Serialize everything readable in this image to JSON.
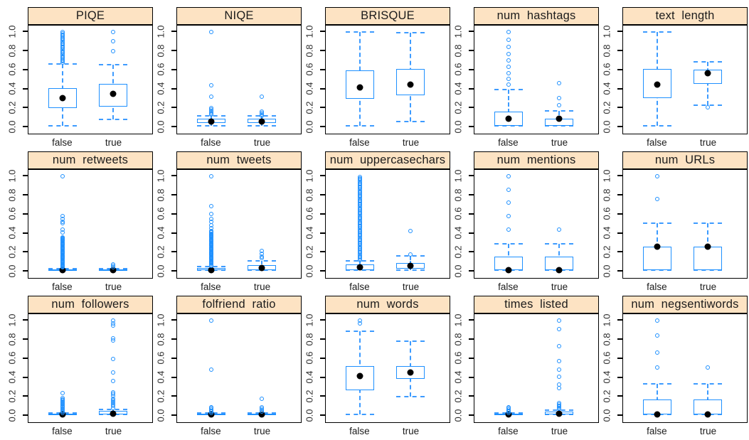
{
  "figure_title": "",
  "colors": {
    "strip_bg": "#fde3c3",
    "strip_border": "#000000",
    "panel_border": "#000000",
    "box_blue": "#1e90ff",
    "whisker_blue": "#3d9bff",
    "mean_dot": "#000000",
    "axis_text": "#303030",
    "category_text": "#1c1c1c"
  },
  "chart_data": {
    "type": "boxplot-grid",
    "rows": 3,
    "cols": 5,
    "y_range": [
      0,
      1
    ],
    "y_ticks": [
      "0.0",
      "0.2",
      "0.4",
      "0.6",
      "0.8",
      "1.0"
    ],
    "group_labels": [
      "false",
      "true"
    ],
    "group_centers_pct": [
      27.5,
      68.5
    ],
    "box_width_pct": 23,
    "panels": [
      {
        "title": "PIQE",
        "groups": [
          {
            "label": "false",
            "q1": 0.19,
            "q3": 0.4,
            "mean": 0.3,
            "whisker_lo": 0.0,
            "whisker_hi": 0.66,
            "outliers": [],
            "outlier_runs": [
              [
                0.675,
                1.0,
                0.013
              ]
            ]
          },
          {
            "label": "true",
            "q1": 0.21,
            "q3": 0.45,
            "mean": 0.34,
            "whisker_lo": 0.07,
            "whisker_hi": 0.65,
            "outliers": [
              0.8,
              0.9,
              1.0
            ],
            "outlier_runs": []
          }
        ]
      },
      {
        "title": "NIQE",
        "groups": [
          {
            "label": "false",
            "q1": 0.03,
            "q3": 0.08,
            "mean": 0.05,
            "whisker_lo": 0.0,
            "whisker_hi": 0.11,
            "outliers": [
              0.31,
              0.43,
              1.0
            ],
            "outlier_runs": [
              [
                0.12,
                0.2,
                0.015
              ]
            ]
          },
          {
            "label": "true",
            "q1": 0.03,
            "q3": 0.08,
            "mean": 0.05,
            "whisker_lo": 0.0,
            "whisker_hi": 0.11,
            "outliers": [
              0.31
            ],
            "outlier_runs": [
              [
                0.11,
                0.16,
                0.015
              ]
            ]
          }
        ]
      },
      {
        "title": "BRISQUE",
        "groups": [
          {
            "label": "false",
            "q1": 0.29,
            "q3": 0.59,
            "mean": 0.41,
            "whisker_lo": 0.0,
            "whisker_hi": 1.0,
            "outliers": [],
            "outlier_runs": []
          },
          {
            "label": "true",
            "q1": 0.33,
            "q3": 0.61,
            "mean": 0.44,
            "whisker_lo": 0.05,
            "whisker_hi": 0.99,
            "outliers": [],
            "outlier_runs": []
          }
        ]
      },
      {
        "title": "num  hashtags",
        "groups": [
          {
            "label": "false",
            "q1": 0.0,
            "q3": 0.155,
            "mean": 0.08,
            "whisker_lo": 0.0,
            "whisker_hi": 0.385,
            "outliers": [
              0.44,
              0.505,
              0.565,
              0.63,
              0.7,
              0.77,
              0.845,
              0.92,
              1.0
            ],
            "outlier_runs": []
          },
          {
            "label": "true",
            "q1": 0.0,
            "q3": 0.08,
            "mean": 0.08,
            "whisker_lo": 0.0,
            "whisker_hi": 0.165,
            "outliers": [
              0.22,
              0.3,
              0.46
            ],
            "outlier_runs": []
          }
        ]
      },
      {
        "title": "text  length",
        "groups": [
          {
            "label": "false",
            "q1": 0.3,
            "q3": 0.61,
            "mean": 0.44,
            "whisker_lo": 0.0,
            "whisker_hi": 1.0,
            "outliers": [],
            "outlier_runs": []
          },
          {
            "label": "true",
            "q1": 0.45,
            "q3": 0.6,
            "mean": 0.56,
            "whisker_lo": 0.22,
            "whisker_hi": 0.68,
            "outliers": [
              0.2
            ],
            "outlier_runs": []
          }
        ]
      },
      {
        "title": "num  retweets",
        "groups": [
          {
            "label": "false",
            "q1": 0.0,
            "q3": 0.012,
            "mean": 0.004,
            "whisker_lo": 0.0,
            "whisker_hi": 0.02,
            "outliers": [
              0.4,
              0.43,
              0.5,
              0.52,
              0.55,
              0.575,
              1.0
            ],
            "outlier_runs": [
              [
                0.03,
                0.36,
                0.009
              ]
            ]
          },
          {
            "label": "true",
            "q1": 0.0,
            "q3": 0.01,
            "mean": 0.004,
            "whisker_lo": 0.0,
            "whisker_hi": 0.015,
            "outliers": [
              0.03,
              0.045,
              0.06
            ],
            "outlier_runs": []
          }
        ]
      },
      {
        "title": "num  tweets",
        "groups": [
          {
            "label": "false",
            "q1": 0.0,
            "q3": 0.025,
            "mean": 0.006,
            "whisker_lo": 0.0,
            "whisker_hi": 0.04,
            "outliers": [
              0.45,
              0.48,
              0.52,
              0.55,
              0.6,
              0.68,
              1.0
            ],
            "outlier_runs": [
              [
                0.05,
                0.42,
                0.009
              ]
            ]
          },
          {
            "label": "true",
            "q1": 0.0,
            "q3": 0.055,
            "mean": 0.025,
            "whisker_lo": 0.0,
            "whisker_hi": 0.1,
            "outliers": [
              0.13,
              0.15,
              0.18,
              0.21
            ],
            "outlier_runs": []
          }
        ]
      },
      {
        "title": "num  uppercasechars",
        "groups": [
          {
            "label": "false",
            "q1": 0.0,
            "q3": 0.06,
            "mean": 0.03,
            "whisker_lo": 0.0,
            "whisker_hi": 0.1,
            "outliers": [],
            "outlier_runs": [
              [
                0.11,
                1.0,
                0.013
              ]
            ]
          },
          {
            "label": "true",
            "q1": 0.02,
            "q3": 0.08,
            "mean": 0.05,
            "whisker_lo": 0.0,
            "whisker_hi": 0.155,
            "outliers": [
              0.17,
              0.42
            ],
            "outlier_runs": []
          }
        ]
      },
      {
        "title": "num  mentions",
        "groups": [
          {
            "label": "false",
            "q1": 0.0,
            "q3": 0.145,
            "mean": 0.005,
            "whisker_lo": 0.0,
            "whisker_hi": 0.285,
            "outliers": [
              0.43,
              0.575,
              0.72,
              0.86,
              1.0
            ],
            "outlier_runs": []
          },
          {
            "label": "true",
            "q1": 0.0,
            "q3": 0.145,
            "mean": 0.005,
            "whisker_lo": 0.0,
            "whisker_hi": 0.285,
            "outliers": [
              0.43
            ],
            "outlier_runs": []
          }
        ]
      },
      {
        "title": "num  URLs",
        "groups": [
          {
            "label": "false",
            "q1": 0.0,
            "q3": 0.25,
            "mean": 0.25,
            "whisker_lo": 0.0,
            "whisker_hi": 0.5,
            "outliers": [
              0.76,
              1.0
            ],
            "outlier_runs": []
          },
          {
            "label": "true",
            "q1": 0.0,
            "q3": 0.25,
            "mean": 0.25,
            "whisker_lo": 0.0,
            "whisker_hi": 0.5,
            "outliers": [],
            "outlier_runs": []
          }
        ]
      },
      {
        "title": "num  followers",
        "groups": [
          {
            "label": "false",
            "q1": 0.0,
            "q3": 0.01,
            "mean": 0.003,
            "whisker_lo": 0.0,
            "whisker_hi": 0.015,
            "outliers": [
              0.23
            ],
            "outlier_runs": [
              [
                0.02,
                0.18,
                0.011
              ]
            ]
          },
          {
            "label": "true",
            "q1": 0.0,
            "q3": 0.04,
            "mean": 0.012,
            "whisker_lo": 0.0,
            "whisker_hi": 0.055,
            "outliers": [
              0.07,
              0.09,
              0.105,
              0.12,
              0.14,
              0.155,
              0.17,
              0.2,
              0.22,
              0.235,
              0.36,
              0.45,
              0.59,
              0.79,
              0.81,
              0.95,
              0.97,
              1.0
            ],
            "outlier_runs": []
          }
        ]
      },
      {
        "title": "folfriend  ratio",
        "groups": [
          {
            "label": "false",
            "q1": 0.0,
            "q3": 0.008,
            "mean": 0.003,
            "whisker_lo": 0.0,
            "whisker_hi": 0.015,
            "outliers": [
              0.48,
              1.0
            ],
            "outlier_runs": [
              [
                0.02,
                0.09,
                0.012
              ]
            ]
          },
          {
            "label": "true",
            "q1": 0.0,
            "q3": 0.008,
            "mean": 0.003,
            "whisker_lo": 0.0,
            "whisker_hi": 0.015,
            "outliers": [
              0.03,
              0.05,
              0.065,
              0.08,
              0.17
            ],
            "outlier_runs": []
          }
        ]
      },
      {
        "title": "num  words",
        "groups": [
          {
            "label": "false",
            "q1": 0.26,
            "q3": 0.52,
            "mean": 0.41,
            "whisker_lo": 0.0,
            "whisker_hi": 0.89,
            "outliers": [
              0.97,
              1.0
            ],
            "outlier_runs": []
          },
          {
            "label": "true",
            "q1": 0.38,
            "q3": 0.52,
            "mean": 0.45,
            "whisker_lo": 0.19,
            "whisker_hi": 0.78,
            "outliers": [],
            "outlier_runs": []
          }
        ]
      },
      {
        "title": "times  listed",
        "groups": [
          {
            "label": "false",
            "q1": 0.0,
            "q3": 0.01,
            "mean": 0.003,
            "whisker_lo": 0.0,
            "whisker_hi": 0.015,
            "outliers": [],
            "outlier_runs": [
              [
                0.02,
                0.08,
                0.012
              ]
            ]
          },
          {
            "label": "true",
            "q1": 0.0,
            "q3": 0.035,
            "mean": 0.012,
            "whisker_lo": 0.0,
            "whisker_hi": 0.05,
            "outliers": [
              0.28,
              0.32,
              0.4,
              0.48,
              0.57,
              0.73,
              0.91,
              1.0
            ],
            "outlier_runs": [
              [
                0.06,
                0.13,
                0.012
              ]
            ]
          }
        ]
      },
      {
        "title": "num  negsentiwords",
        "groups": [
          {
            "label": "false",
            "q1": 0.0,
            "q3": 0.165,
            "mean": 0.005,
            "whisker_lo": 0.0,
            "whisker_hi": 0.33,
            "outliers": [
              0.5,
              0.66,
              0.84,
              1.0
            ],
            "outlier_runs": []
          },
          {
            "label": "true",
            "q1": 0.0,
            "q3": 0.165,
            "mean": 0.005,
            "whisker_lo": 0.0,
            "whisker_hi": 0.33,
            "outliers": [
              0.5
            ],
            "outlier_runs": []
          }
        ]
      }
    ]
  }
}
